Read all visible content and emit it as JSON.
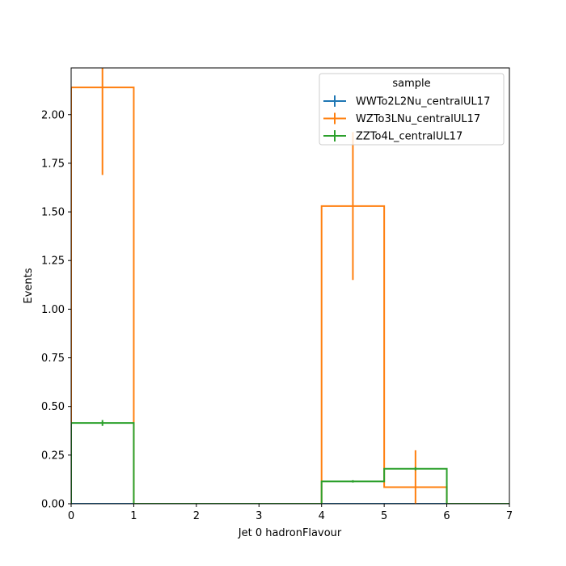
{
  "chart_data": {
    "type": "histogram",
    "xlabel": "Jet 0 hadronFlavour",
    "ylabel": "Events",
    "xlim": [
      0,
      7
    ],
    "ylim": [
      0,
      2.24
    ],
    "xticks": [
      "0",
      "1",
      "2",
      "3",
      "4",
      "5",
      "6",
      "7"
    ],
    "yticks": [
      "0.00",
      "0.25",
      "0.50",
      "0.75",
      "1.00",
      "1.25",
      "1.50",
      "1.75",
      "2.00"
    ],
    "grid": false,
    "legend": {
      "title": "sample",
      "placement": "top-right"
    },
    "bin_edges": [
      0,
      1,
      2,
      3,
      4,
      5,
      6,
      7
    ],
    "series": [
      {
        "name": "WWTo2L2Nu_centralUL17",
        "color": "#1f77b4",
        "values": [
          0,
          0,
          0,
          0,
          0,
          0,
          0
        ],
        "errors": [
          0,
          0,
          0,
          0,
          0,
          0,
          0
        ]
      },
      {
        "name": "WZTo3LNu_centralUL17",
        "color": "#ff7f0e",
        "values": [
          2.14,
          0,
          0,
          0,
          1.53,
          0.085,
          0
        ],
        "errors": [
          0.45,
          0,
          0,
          0,
          0.38,
          0.19,
          0
        ]
      },
      {
        "name": "ZZTo4L_centralUL17",
        "color": "#2ca02c",
        "values": [
          0.415,
          0,
          0,
          0,
          0.115,
          0.18,
          0
        ],
        "errors": [
          0.015,
          0,
          0,
          0,
          0.006,
          0.008,
          0
        ]
      }
    ]
  }
}
